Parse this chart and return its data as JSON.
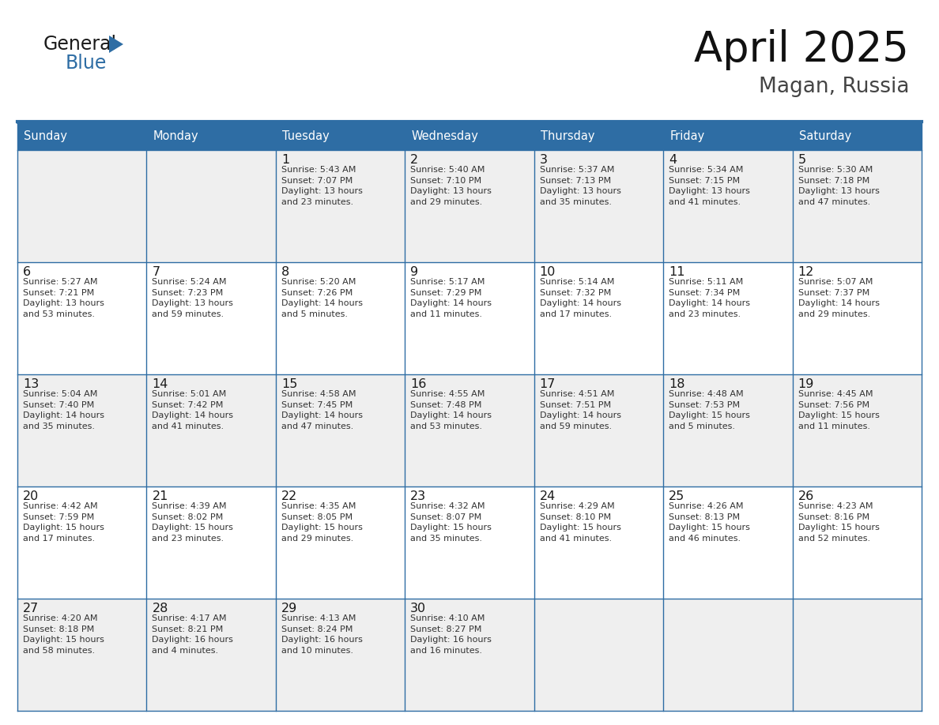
{
  "title": "April 2025",
  "subtitle": "Magan, Russia",
  "header_bg": "#2E6DA4",
  "header_text_color": "#FFFFFF",
  "cell_bg_odd": "#EFEFEF",
  "cell_bg_even": "#FFFFFF",
  "day_number_color": "#1a1a1a",
  "text_color": "#333333",
  "border_color": "#2E6DA4",
  "line_color": "#AAAAAA",
  "days_of_week": [
    "Sunday",
    "Monday",
    "Tuesday",
    "Wednesday",
    "Thursday",
    "Friday",
    "Saturday"
  ],
  "weeks": [
    [
      {
        "day": "",
        "info": ""
      },
      {
        "day": "",
        "info": ""
      },
      {
        "day": "1",
        "info": "Sunrise: 5:43 AM\nSunset: 7:07 PM\nDaylight: 13 hours\nand 23 minutes."
      },
      {
        "day": "2",
        "info": "Sunrise: 5:40 AM\nSunset: 7:10 PM\nDaylight: 13 hours\nand 29 minutes."
      },
      {
        "day": "3",
        "info": "Sunrise: 5:37 AM\nSunset: 7:13 PM\nDaylight: 13 hours\nand 35 minutes."
      },
      {
        "day": "4",
        "info": "Sunrise: 5:34 AM\nSunset: 7:15 PM\nDaylight: 13 hours\nand 41 minutes."
      },
      {
        "day": "5",
        "info": "Sunrise: 5:30 AM\nSunset: 7:18 PM\nDaylight: 13 hours\nand 47 minutes."
      }
    ],
    [
      {
        "day": "6",
        "info": "Sunrise: 5:27 AM\nSunset: 7:21 PM\nDaylight: 13 hours\nand 53 minutes."
      },
      {
        "day": "7",
        "info": "Sunrise: 5:24 AM\nSunset: 7:23 PM\nDaylight: 13 hours\nand 59 minutes."
      },
      {
        "day": "8",
        "info": "Sunrise: 5:20 AM\nSunset: 7:26 PM\nDaylight: 14 hours\nand 5 minutes."
      },
      {
        "day": "9",
        "info": "Sunrise: 5:17 AM\nSunset: 7:29 PM\nDaylight: 14 hours\nand 11 minutes."
      },
      {
        "day": "10",
        "info": "Sunrise: 5:14 AM\nSunset: 7:32 PM\nDaylight: 14 hours\nand 17 minutes."
      },
      {
        "day": "11",
        "info": "Sunrise: 5:11 AM\nSunset: 7:34 PM\nDaylight: 14 hours\nand 23 minutes."
      },
      {
        "day": "12",
        "info": "Sunrise: 5:07 AM\nSunset: 7:37 PM\nDaylight: 14 hours\nand 29 minutes."
      }
    ],
    [
      {
        "day": "13",
        "info": "Sunrise: 5:04 AM\nSunset: 7:40 PM\nDaylight: 14 hours\nand 35 minutes."
      },
      {
        "day": "14",
        "info": "Sunrise: 5:01 AM\nSunset: 7:42 PM\nDaylight: 14 hours\nand 41 minutes."
      },
      {
        "day": "15",
        "info": "Sunrise: 4:58 AM\nSunset: 7:45 PM\nDaylight: 14 hours\nand 47 minutes."
      },
      {
        "day": "16",
        "info": "Sunrise: 4:55 AM\nSunset: 7:48 PM\nDaylight: 14 hours\nand 53 minutes."
      },
      {
        "day": "17",
        "info": "Sunrise: 4:51 AM\nSunset: 7:51 PM\nDaylight: 14 hours\nand 59 minutes."
      },
      {
        "day": "18",
        "info": "Sunrise: 4:48 AM\nSunset: 7:53 PM\nDaylight: 15 hours\nand 5 minutes."
      },
      {
        "day": "19",
        "info": "Sunrise: 4:45 AM\nSunset: 7:56 PM\nDaylight: 15 hours\nand 11 minutes."
      }
    ],
    [
      {
        "day": "20",
        "info": "Sunrise: 4:42 AM\nSunset: 7:59 PM\nDaylight: 15 hours\nand 17 minutes."
      },
      {
        "day": "21",
        "info": "Sunrise: 4:39 AM\nSunset: 8:02 PM\nDaylight: 15 hours\nand 23 minutes."
      },
      {
        "day": "22",
        "info": "Sunrise: 4:35 AM\nSunset: 8:05 PM\nDaylight: 15 hours\nand 29 minutes."
      },
      {
        "day": "23",
        "info": "Sunrise: 4:32 AM\nSunset: 8:07 PM\nDaylight: 15 hours\nand 35 minutes."
      },
      {
        "day": "24",
        "info": "Sunrise: 4:29 AM\nSunset: 8:10 PM\nDaylight: 15 hours\nand 41 minutes."
      },
      {
        "day": "25",
        "info": "Sunrise: 4:26 AM\nSunset: 8:13 PM\nDaylight: 15 hours\nand 46 minutes."
      },
      {
        "day": "26",
        "info": "Sunrise: 4:23 AM\nSunset: 8:16 PM\nDaylight: 15 hours\nand 52 minutes."
      }
    ],
    [
      {
        "day": "27",
        "info": "Sunrise: 4:20 AM\nSunset: 8:18 PM\nDaylight: 15 hours\nand 58 minutes."
      },
      {
        "day": "28",
        "info": "Sunrise: 4:17 AM\nSunset: 8:21 PM\nDaylight: 16 hours\nand 4 minutes."
      },
      {
        "day": "29",
        "info": "Sunrise: 4:13 AM\nSunset: 8:24 PM\nDaylight: 16 hours\nand 10 minutes."
      },
      {
        "day": "30",
        "info": "Sunrise: 4:10 AM\nSunset: 8:27 PM\nDaylight: 16 hours\nand 16 minutes."
      },
      {
        "day": "",
        "info": ""
      },
      {
        "day": "",
        "info": ""
      },
      {
        "day": "",
        "info": ""
      }
    ]
  ]
}
